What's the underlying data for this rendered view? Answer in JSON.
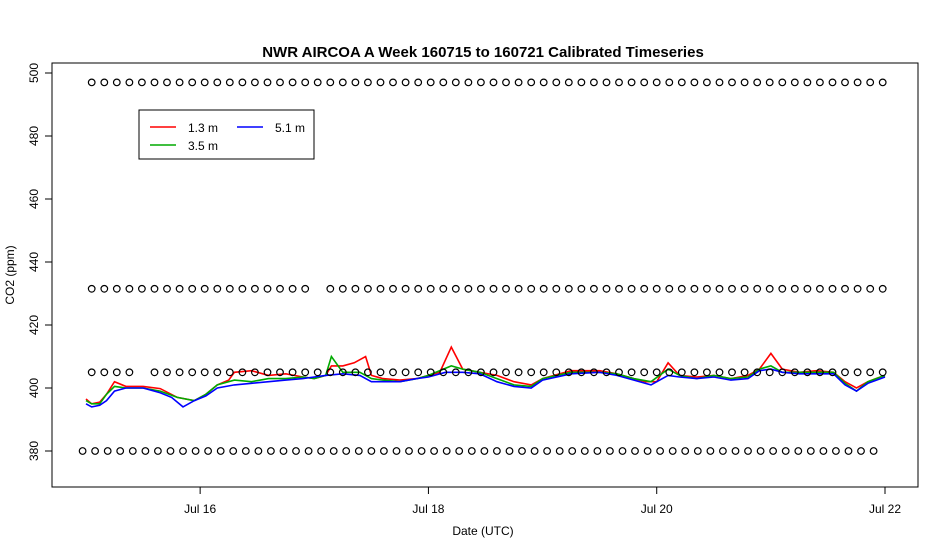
{
  "chart_data": {
    "type": "line",
    "title": "NWR AIRCOA A  Week 160715 to 160721  Calibrated Timeseries",
    "xlabel": "Date (UTC)",
    "ylabel": "CO2 (ppm)",
    "x_unit": "days",
    "xlim": [
      15.0,
      22.0
    ],
    "ylim": [
      367,
      503
    ],
    "x_ticks": [
      {
        "value": 16,
        "label": "Jul 16"
      },
      {
        "value": 18,
        "label": "Jul 18"
      },
      {
        "value": 20,
        "label": "Jul 20"
      },
      {
        "value": 22,
        "label": "Jul 22"
      }
    ],
    "y_ticks": [
      380,
      400,
      420,
      440,
      460,
      480,
      500
    ],
    "grid": false,
    "legend": {
      "position": "top-left",
      "entries": [
        {
          "name": "1.3 m",
          "color": "#ff0000"
        },
        {
          "name": "3.5 m",
          "color": "#00aa00"
        },
        {
          "name": "5.1 m",
          "color": "#0000ff"
        }
      ]
    },
    "series": [
      {
        "name": "1.3 m",
        "color": "#ff0000",
        "points": [
          [
            15.0,
            396.5
          ],
          [
            15.05,
            395
          ],
          [
            15.12,
            395.5
          ],
          [
            15.18,
            398
          ],
          [
            15.25,
            402
          ],
          [
            15.35,
            400.5
          ],
          [
            15.5,
            400.5
          ],
          [
            15.65,
            399.8
          ],
          [
            15.8,
            397
          ],
          [
            15.95,
            396
          ],
          [
            16.05,
            398
          ],
          [
            16.15,
            401
          ],
          [
            16.25,
            402.5
          ],
          [
            16.3,
            405
          ],
          [
            16.45,
            405.5
          ],
          [
            16.6,
            404
          ],
          [
            16.75,
            404.5
          ],
          [
            16.9,
            403.5
          ],
          [
            17.0,
            403
          ],
          [
            17.1,
            404
          ],
          [
            17.15,
            407
          ],
          [
            17.25,
            407
          ],
          [
            17.35,
            408
          ],
          [
            17.45,
            410
          ],
          [
            17.5,
            404
          ],
          [
            17.6,
            403
          ],
          [
            17.75,
            402.5
          ],
          [
            17.9,
            403
          ],
          [
            18.0,
            404
          ],
          [
            18.1,
            405
          ],
          [
            18.2,
            413
          ],
          [
            18.3,
            406
          ],
          [
            18.45,
            405
          ],
          [
            18.6,
            404
          ],
          [
            18.75,
            402
          ],
          [
            18.9,
            401
          ],
          [
            19.0,
            403
          ],
          [
            19.1,
            404
          ],
          [
            19.25,
            405.5
          ],
          [
            19.5,
            405.5
          ],
          [
            19.65,
            404.5
          ],
          [
            19.8,
            403
          ],
          [
            19.9,
            402
          ],
          [
            20.0,
            402
          ],
          [
            20.1,
            408
          ],
          [
            20.2,
            404
          ],
          [
            20.35,
            403.5
          ],
          [
            20.5,
            404
          ],
          [
            20.65,
            403
          ],
          [
            20.8,
            404
          ],
          [
            20.9,
            406
          ],
          [
            21.0,
            411
          ],
          [
            21.1,
            406
          ],
          [
            21.25,
            405
          ],
          [
            21.4,
            405.5
          ],
          [
            21.55,
            405
          ],
          [
            21.65,
            402
          ],
          [
            21.75,
            400
          ],
          [
            21.85,
            402
          ],
          [
            21.92,
            403
          ],
          [
            22.0,
            404
          ]
        ]
      },
      {
        "name": "3.5 m",
        "color": "#00aa00",
        "points": [
          [
            15.0,
            396
          ],
          [
            15.05,
            395
          ],
          [
            15.12,
            395
          ],
          [
            15.18,
            398
          ],
          [
            15.25,
            400.5
          ],
          [
            15.35,
            400
          ],
          [
            15.5,
            400
          ],
          [
            15.65,
            399
          ],
          [
            15.8,
            397
          ],
          [
            15.95,
            396
          ],
          [
            16.05,
            398
          ],
          [
            16.15,
            401
          ],
          [
            16.3,
            402.5
          ],
          [
            16.45,
            402
          ],
          [
            16.6,
            403
          ],
          [
            16.75,
            403
          ],
          [
            16.9,
            403.5
          ],
          [
            17.0,
            403
          ],
          [
            17.1,
            404
          ],
          [
            17.15,
            410
          ],
          [
            17.25,
            405
          ],
          [
            17.4,
            405
          ],
          [
            17.5,
            403
          ],
          [
            17.6,
            402.5
          ],
          [
            17.75,
            402
          ],
          [
            17.9,
            403
          ],
          [
            18.0,
            404
          ],
          [
            18.2,
            407
          ],
          [
            18.3,
            406
          ],
          [
            18.45,
            405
          ],
          [
            18.6,
            403
          ],
          [
            18.75,
            401
          ],
          [
            18.9,
            400.5
          ],
          [
            19.0,
            403
          ],
          [
            19.25,
            405
          ],
          [
            19.5,
            405
          ],
          [
            19.65,
            404.5
          ],
          [
            19.8,
            403
          ],
          [
            19.95,
            402
          ],
          [
            20.1,
            406
          ],
          [
            20.2,
            404
          ],
          [
            20.35,
            403
          ],
          [
            20.5,
            404
          ],
          [
            20.65,
            403
          ],
          [
            20.8,
            403.5
          ],
          [
            20.9,
            406
          ],
          [
            21.0,
            407
          ],
          [
            21.1,
            405
          ],
          [
            21.25,
            405
          ],
          [
            21.4,
            405
          ],
          [
            21.55,
            405
          ],
          [
            21.65,
            401.5
          ],
          [
            21.75,
            399
          ],
          [
            21.85,
            402
          ],
          [
            22.0,
            404
          ]
        ]
      },
      {
        "name": "5.1 m",
        "color": "#0000ff",
        "points": [
          [
            15.0,
            395
          ],
          [
            15.05,
            394
          ],
          [
            15.12,
            394.5
          ],
          [
            15.18,
            396
          ],
          [
            15.25,
            399
          ],
          [
            15.35,
            400
          ],
          [
            15.5,
            400
          ],
          [
            15.65,
            398.5
          ],
          [
            15.75,
            397
          ],
          [
            15.85,
            394
          ],
          [
            15.95,
            396
          ],
          [
            16.05,
            397.5
          ],
          [
            16.15,
            400
          ],
          [
            16.3,
            401
          ],
          [
            16.45,
            401.5
          ],
          [
            16.6,
            402
          ],
          [
            16.75,
            402.5
          ],
          [
            16.9,
            403
          ],
          [
            17.0,
            403.5
          ],
          [
            17.1,
            404
          ],
          [
            17.25,
            404.5
          ],
          [
            17.4,
            404
          ],
          [
            17.5,
            402
          ],
          [
            17.6,
            402
          ],
          [
            17.75,
            402
          ],
          [
            17.9,
            403
          ],
          [
            18.0,
            403.5
          ],
          [
            18.15,
            405
          ],
          [
            18.3,
            405
          ],
          [
            18.45,
            404.5
          ],
          [
            18.6,
            402
          ],
          [
            18.75,
            400.5
          ],
          [
            18.9,
            400
          ],
          [
            19.0,
            402.5
          ],
          [
            19.25,
            404.5
          ],
          [
            19.5,
            405
          ],
          [
            19.65,
            404
          ],
          [
            19.8,
            402.5
          ],
          [
            19.95,
            401
          ],
          [
            20.1,
            404
          ],
          [
            20.2,
            403.5
          ],
          [
            20.35,
            403
          ],
          [
            20.5,
            403.5
          ],
          [
            20.65,
            402.5
          ],
          [
            20.8,
            403
          ],
          [
            20.9,
            405.5
          ],
          [
            21.0,
            406
          ],
          [
            21.1,
            405
          ],
          [
            21.25,
            404.5
          ],
          [
            21.4,
            404.5
          ],
          [
            21.55,
            404.5
          ],
          [
            21.65,
            401
          ],
          [
            21.75,
            399
          ],
          [
            21.85,
            401.5
          ],
          [
            22.0,
            403.5
          ]
        ]
      }
    ],
    "calibration_markers": [
      {
        "name": "standard-497",
        "y": 497,
        "start": 15.05,
        "spacing": 0.11,
        "end": 22.0,
        "gaps": []
      },
      {
        "name": "standard-431",
        "y": 431.5,
        "start": 15.05,
        "spacing": 0.11,
        "end": 22.0,
        "gaps": [
          [
            17.0,
            17.08
          ]
        ]
      },
      {
        "name": "standard-405",
        "y": 405,
        "start": 15.05,
        "spacing": 0.11,
        "end": 22.0,
        "gaps": [
          [
            15.48,
            15.55
          ]
        ]
      },
      {
        "name": "standard-380",
        "y": 380,
        "start": 14.97,
        "spacing": 0.11,
        "end": 22.0,
        "gaps": []
      }
    ]
  }
}
